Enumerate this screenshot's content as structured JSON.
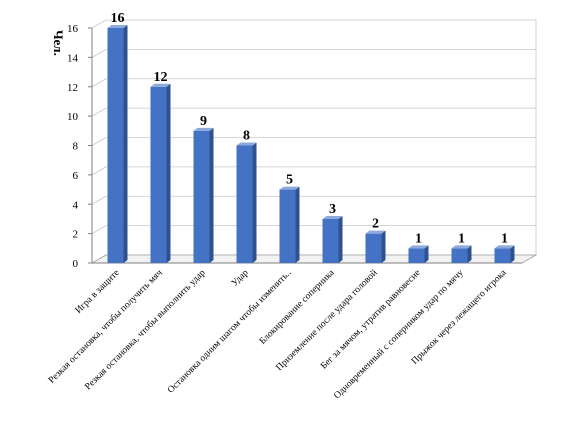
{
  "chart_data": {
    "type": "bar",
    "ylabel": "Чел.",
    "ylim": [
      0,
      16
    ],
    "yticks": [
      0,
      2,
      4,
      6,
      8,
      10,
      12,
      14,
      16
    ],
    "grid": true,
    "bar_color": "#4472C4",
    "categories": [
      "Игра в защите",
      "Резкая остановка, чтобы получить мяч",
      "Резкая остановка, чтобы выполнить удар",
      "Удар",
      "Остановка одним шагом чтобы изменить..",
      "Блокирование соперника",
      "Приземление после удара головой",
      "Бег за мячом, утратив равновесие",
      "Одновременный с соперником удар по мячу",
      "Прыжок через лежащего игрока"
    ],
    "values": [
      16,
      12,
      9,
      8,
      5,
      3,
      2,
      1,
      1,
      1
    ]
  }
}
